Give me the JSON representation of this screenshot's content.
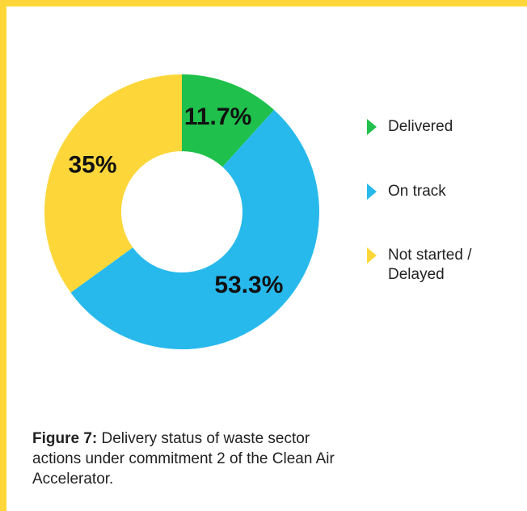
{
  "chart_data": {
    "type": "donut",
    "categories": [
      "Delivered",
      "On track",
      "Not started / Delayed"
    ],
    "values": [
      11.7,
      53.3,
      35
    ],
    "value_labels": [
      "11.7%",
      "53.3%",
      "35%"
    ],
    "colors": [
      "#1fc04b",
      "#27b9ec",
      "#fdd73a"
    ],
    "legend": "right",
    "caption_label": "Figure 7:",
    "caption": "Delivery status of waste sector actions under commitment 2 of the Clean Air Accelerator."
  }
}
